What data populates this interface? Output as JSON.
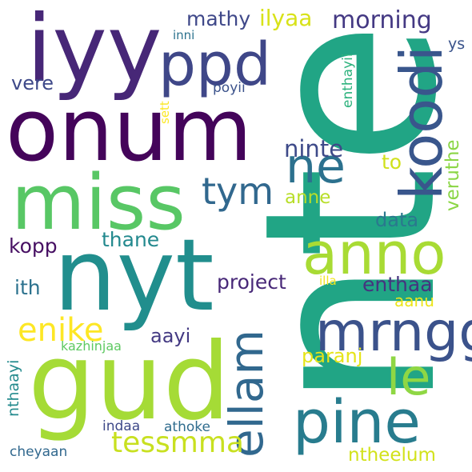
{
  "words": [
    {
      "key": "nte",
      "text": "nte",
      "color": "#21a585"
    },
    {
      "key": "iyy",
      "text": "iyy",
      "color": "#472777"
    },
    {
      "key": "onum",
      "text": "onum",
      "color": "#44045a"
    },
    {
      "key": "ppd",
      "text": "ppd",
      "color": "#3f4788"
    },
    {
      "key": "koodi",
      "text": "koodi",
      "color": "#39568c"
    },
    {
      "key": "miss",
      "text": "miss",
      "color": "#58c765"
    },
    {
      "key": "nyt",
      "text": "nyt",
      "color": "#218e8d"
    },
    {
      "key": "gud",
      "text": "gud",
      "color": "#a5db36"
    },
    {
      "key": "ne",
      "text": "ne",
      "color": "#2c718e"
    },
    {
      "key": "anno",
      "text": "anno",
      "color": "#a8db34"
    },
    {
      "key": "mrngg",
      "text": "mrngg",
      "color": "#3b528b"
    },
    {
      "key": "ellam",
      "text": "ellam",
      "color": "#31688e"
    },
    {
      "key": "pine",
      "text": "pine",
      "color": "#287c8e"
    },
    {
      "key": "le",
      "text": "le",
      "color": "#8fd744"
    },
    {
      "key": "tym",
      "text": "tym",
      "color": "#31688e"
    },
    {
      "key": "ninte",
      "text": "ninte",
      "color": "#3e4a89"
    },
    {
      "key": "morning",
      "text": "morning",
      "color": "#443983"
    },
    {
      "key": "mathy",
      "text": "mathy",
      "color": "#3f4889"
    },
    {
      "key": "ilyaa",
      "text": "ilyaa",
      "color": "#d8e219"
    },
    {
      "key": "enike",
      "text": "enike",
      "color": "#fde725"
    },
    {
      "key": "tessmma",
      "text": "tessmma",
      "color": "#c8e020"
    },
    {
      "key": "vere",
      "text": "vere",
      "color": "#3e4989"
    },
    {
      "key": "inni",
      "text": "inni",
      "color": "#2c728e"
    },
    {
      "key": "poyii",
      "text": "poyii",
      "color": "#3b528b"
    },
    {
      "key": "sett",
      "text": "sett",
      "color": "#fbe723"
    },
    {
      "key": "enthayii",
      "text": "enthayii",
      "color": "#2db27d"
    },
    {
      "key": "ys",
      "text": "ys",
      "color": "#3a538b"
    },
    {
      "key": "to",
      "text": "to",
      "color": "#d0e11c"
    },
    {
      "key": "anne",
      "text": "anne",
      "color": "#b8de29"
    },
    {
      "key": "veruthe",
      "text": "veruthe",
      "color": "#8bd646"
    },
    {
      "key": "data",
      "text": "data",
      "color": "#2a788e"
    },
    {
      "key": "thane",
      "text": "thane",
      "color": "#23898e"
    },
    {
      "key": "kopp",
      "text": "kopp",
      "color": "#471063"
    },
    {
      "key": "project",
      "text": "project",
      "color": "#482878"
    },
    {
      "key": "illa",
      "text": "illa",
      "color": "#f1e51d"
    },
    {
      "key": "enthaa",
      "text": "enthaa",
      "color": "#46337f"
    },
    {
      "key": "ith",
      "text": "ith",
      "color": "#2c728e"
    },
    {
      "key": "aanu",
      "text": "aanu",
      "color": "#ece51b"
    },
    {
      "key": "aayi",
      "text": "aayi",
      "color": "#443a83"
    },
    {
      "key": "paranj",
      "text": "paranj",
      "color": "#e5e419"
    },
    {
      "key": "kazhinjaa",
      "text": "kazhinjaa",
      "color": "#5ec962"
    },
    {
      "key": "nthaayi",
      "text": "nthaayi",
      "color": "#238a8d"
    },
    {
      "key": "indaa",
      "text": "indaa",
      "color": "#3e4989"
    },
    {
      "key": "athoke",
      "text": "athoke",
      "color": "#2f6c8e"
    },
    {
      "key": "cheyaan",
      "text": "cheyaan",
      "color": "#31688e"
    },
    {
      "key": "ntheelum",
      "text": "ntheelum",
      "color": "#d2e21b"
    }
  ]
}
